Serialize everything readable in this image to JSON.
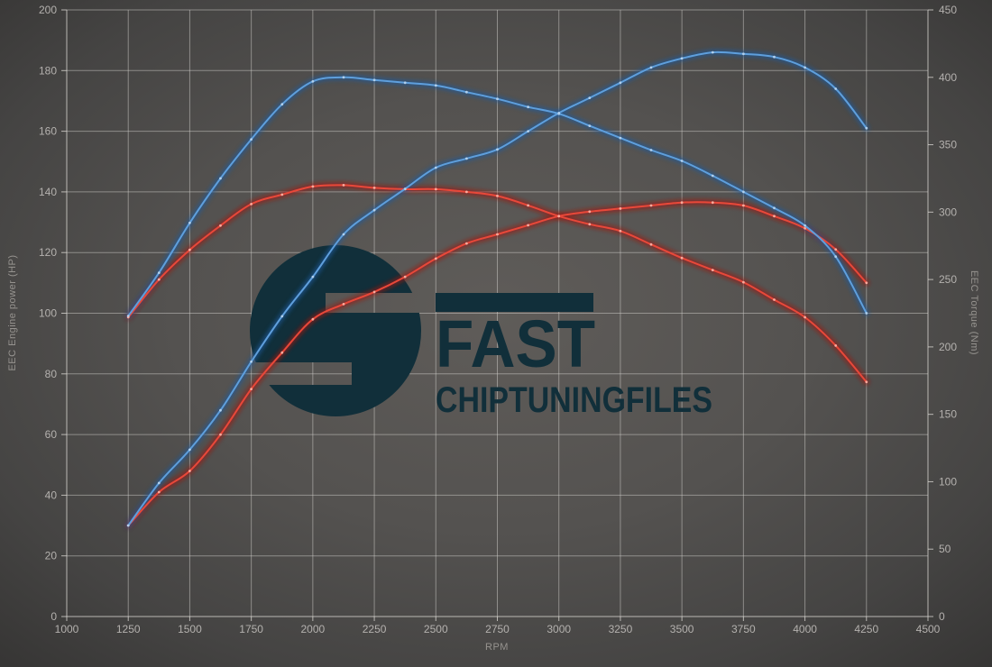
{
  "watermark": {
    "brand": "FAST",
    "brand_sub": "CHIPTUNINGFILES",
    "color": "#112f3a"
  },
  "axes": {
    "x_label": "RPM",
    "y_left_label": "EEC Engine power (HP)",
    "y_right_label": "EEC Torque (Nm)"
  },
  "colors": {
    "background_center": "#5f5c59",
    "background_mid": "#504e4b",
    "background_edge": "#373635",
    "grid": "rgba(210,207,203,0.5)",
    "axis_line": "rgba(215,212,208,0.8)",
    "tick_text": "#b4b1ae",
    "axis_title_text": "#96938f"
  },
  "chart_data": {
    "type": "line",
    "title": "",
    "xlabel": "RPM",
    "ylabel_left": "EEC Engine power (HP)",
    "ylabel_right": "EEC Torque (Nm)",
    "xlim": [
      1000,
      4500
    ],
    "ylim_left": [
      0,
      200
    ],
    "ylim_right": [
      0,
      450
    ],
    "x_ticks": [
      1000,
      1250,
      1500,
      1750,
      2000,
      2250,
      2500,
      2750,
      3000,
      3250,
      3500,
      3750,
      4000,
      4250,
      4500
    ],
    "y_left_ticks": [
      0,
      20,
      40,
      60,
      80,
      100,
      120,
      140,
      160,
      180,
      200
    ],
    "y_right_ticks": [
      0,
      50,
      100,
      150,
      200,
      250,
      300,
      350,
      400,
      450
    ],
    "grid": true,
    "legend": "none",
    "x_rpm": [
      1250,
      1375,
      1500,
      1625,
      1750,
      1875,
      2000,
      2125,
      2250,
      2375,
      2500,
      2625,
      2750,
      2875,
      3000,
      3125,
      3250,
      3375,
      3500,
      3625,
      3750,
      3875,
      4000,
      4125,
      4250
    ],
    "series": [
      {
        "name": "power-red",
        "axis": "left",
        "unit": "HP",
        "color_core": "#e8483a",
        "color_glow": "#9e130e",
        "color_dot": "#ffb4a6",
        "values": [
          30,
          41,
          48,
          60,
          75,
          87,
          98,
          103,
          107,
          112,
          118,
          123,
          126,
          129,
          132,
          133.5,
          134.5,
          135.5,
          136.5,
          136.5,
          135.5,
          132,
          128,
          121,
          110
        ]
      },
      {
        "name": "torque-red",
        "axis": "right",
        "unit": "Nm",
        "color_core": "#e8483a",
        "color_glow": "#9e130e",
        "color_dot": "#ffb4a6",
        "values": [
          222,
          250,
          272,
          290,
          306,
          313,
          319,
          320,
          318,
          317,
          317,
          315,
          312,
          305,
          297,
          291,
          286,
          276,
          266,
          257,
          248,
          235,
          222,
          201,
          174
        ]
      },
      {
        "name": "power-blue",
        "axis": "left",
        "unit": "HP",
        "color_core": "#5f9fdc",
        "color_glow": "#1e5a9e",
        "color_dot": "#b9d5f0",
        "values": [
          30,
          44,
          55,
          68,
          84,
          99,
          112,
          126,
          134,
          141,
          148,
          151,
          154,
          160,
          166,
          171,
          176,
          181,
          184,
          186,
          185.5,
          184.5,
          181,
          174,
          161
        ]
      },
      {
        "name": "torque-blue",
        "axis": "right",
        "unit": "Nm",
        "color_core": "#5f9fdc",
        "color_glow": "#1e5a9e",
        "color_dot": "#b9d5f0",
        "values": [
          223,
          255,
          292,
          325,
          354,
          380,
          397,
          400,
          398,
          396,
          394,
          389,
          384,
          378,
          373,
          364,
          355,
          346,
          338,
          327,
          315,
          303,
          290,
          267,
          225
        ]
      }
    ]
  }
}
